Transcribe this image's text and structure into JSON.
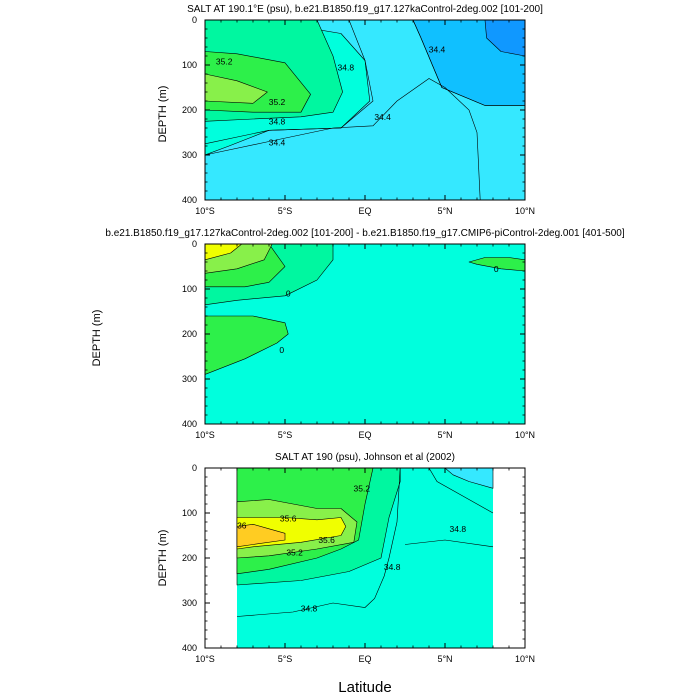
{
  "figure": {
    "xlabel": "Latitude"
  },
  "chart_data": [
    {
      "type": "contour",
      "id": "p1",
      "title": "SALT AT 190.1°E (psu), b.e21.B1850.f19_g17.127kaControl-2deg.002 [101-200]",
      "ylabel": "DEPTH (m)",
      "xlim": [
        -10,
        10
      ],
      "ylim": [
        400,
        0
      ],
      "x_ticks": [
        "10°S",
        "5°S",
        "EQ",
        "5°N",
        "10°N"
      ],
      "y_ticks": [
        "0",
        "100",
        "200",
        "300",
        "400"
      ],
      "background": "#35e8ff",
      "regions": [
        {
          "level": 34.6,
          "color": "#10c0ff",
          "x": [
            3,
            3.5,
            4.8,
            7.5,
            10,
            10
          ],
          "y": [
            0,
            40,
            150,
            190,
            190,
            0
          ]
        },
        {
          "level": 34.4,
          "color": "#1098ff",
          "x": [
            7.5,
            7.6,
            8.5,
            10,
            10
          ],
          "y": [
            0,
            40,
            70,
            80,
            0
          ]
        },
        {
          "level": 34.8,
          "color": "#00ffdd",
          "x": [
            -10,
            -10,
            -7,
            -4,
            -1.5,
            0,
            0.3,
            -1.5,
            -6,
            -8.5,
            -10
          ],
          "y": [
            0,
            20,
            35,
            15,
            30,
            90,
            180,
            240,
            245,
            280,
            300
          ]
        },
        {
          "level": 35.0,
          "color": "#00f7a0",
          "x": [
            -10,
            -6,
            -3,
            -2,
            -1.4,
            -2,
            -4,
            -7,
            -10
          ],
          "y": [
            0,
            0,
            0,
            80,
            160,
            205,
            215,
            220,
            225
          ]
        },
        {
          "level": 35.2,
          "color": "#2df04a",
          "x": [
            -10,
            -8,
            -5,
            -3.4,
            -4,
            -7,
            -10
          ],
          "y": [
            70,
            75,
            95,
            165,
            205,
            205,
            200
          ]
        },
        {
          "level": 35.4,
          "color": "#88f04a",
          "x": [
            -10,
            -8,
            -6.1,
            -7,
            -10
          ],
          "y": [
            120,
            135,
            160,
            185,
            180
          ]
        }
      ],
      "lines": [
        {
          "level": 34.4,
          "x": [
            -10,
            -6,
            -2,
            0.5,
            2,
            4,
            5,
            6.5,
            7,
            7.2
          ],
          "y": [
            300,
            270,
            240,
            235,
            180,
            130,
            150,
            200,
            250,
            400
          ]
        },
        {
          "level": 34.4,
          "x": [
            3,
            3.5,
            4.8,
            7.5,
            10
          ],
          "y": [
            0,
            40,
            150,
            190,
            190
          ]
        },
        {
          "level": 34.8,
          "x": [
            -1,
            0,
            0.5,
            -1.5,
            -6,
            -10
          ],
          "y": [
            0,
            90,
            180,
            240,
            245,
            275
          ]
        }
      ],
      "contour_labels": [
        {
          "text": "35.2",
          "x": -8.8,
          "y": 92
        },
        {
          "text": "35.2",
          "x": -5.5,
          "y": 182
        },
        {
          "text": "34.8",
          "x": -5.5,
          "y": 225
        },
        {
          "text": "34.4",
          "x": -5.5,
          "y": 272
        },
        {
          "text": "34.8",
          "x": -1.2,
          "y": 105
        },
        {
          "text": "34.4",
          "x": 1.1,
          "y": 215
        },
        {
          "text": "34.4",
          "x": 4.5,
          "y": 65
        }
      ]
    },
    {
      "type": "contour",
      "id": "p2",
      "title": "b.e21.B1850.f19_g17.127kaControl-2deg.002 [101-200] - b.e21.B1850.f19_g17.CMIP6-piControl-2deg.001 [401-500]",
      "ylabel": "DEPTH (m)",
      "xlim": [
        -10,
        10
      ],
      "ylim": [
        400,
        0
      ],
      "x_ticks": [
        "10°S",
        "5°S",
        "EQ",
        "5°N",
        "10°N"
      ],
      "y_ticks": [
        "0",
        "100",
        "200",
        "300",
        "400"
      ],
      "background": "#00ffdd",
      "regions": [
        {
          "level": 0.1,
          "color": "#00f7a0",
          "x": [
            -10,
            -5,
            -2,
            -2,
            -3,
            -5,
            -8,
            -10
          ],
          "y": [
            0,
            0,
            0,
            35,
            80,
            115,
            125,
            135
          ]
        },
        {
          "level": 0.2,
          "color": "#2df04a",
          "x": [
            -10,
            -6,
            -5,
            -6,
            -7.5,
            -10
          ],
          "y": [
            0,
            0,
            50,
            85,
            95,
            95
          ]
        },
        {
          "level": 0.3,
          "color": "#88f04a",
          "x": [
            -10,
            -5.8,
            -6.3,
            -8,
            -10
          ],
          "y": [
            0,
            0,
            35,
            55,
            65
          ]
        },
        {
          "level": 0.4,
          "color": "#f0ff00",
          "x": [
            -10,
            -7.7,
            -8.4,
            -10
          ],
          "y": [
            0,
            0,
            20,
            35
          ]
        },
        {
          "level": 0.5,
          "color": "#ffcc22",
          "x": [
            -10,
            -10
          ],
          "y": [
            0,
            10
          ]
        },
        {
          "level": 0.1,
          "color": "#2df04a",
          "x": [
            -10,
            -7,
            -5,
            -4.8,
            -5.5,
            -7.5,
            -10
          ],
          "y": [
            160,
            160,
            175,
            200,
            220,
            255,
            290
          ]
        },
        {
          "level": 0.1,
          "color": "#2df04a",
          "x": [
            6.5,
            7.5,
            9,
            10,
            10,
            8.5,
            7
          ],
          "y": [
            40,
            30,
            30,
            35,
            60,
            55,
            45
          ]
        }
      ],
      "lines": [],
      "contour_labels": [
        {
          "text": "0",
          "x": -4.8,
          "y": 110
        },
        {
          "text": "0",
          "x": -5.2,
          "y": 235
        },
        {
          "text": "0",
          "x": 8.2,
          "y": 55
        }
      ]
    },
    {
      "type": "contour",
      "id": "p3",
      "title": "SALT AT 190 (psu), Johnson et al (2002)",
      "ylabel": "DEPTH (m)",
      "xlim": [
        -10,
        10
      ],
      "ylim": [
        400,
        0
      ],
      "x_ticks": [
        "10°S",
        "5°S",
        "EQ",
        "5°N",
        "10°N"
      ],
      "y_ticks": [
        "0",
        "100",
        "200",
        "300",
        "400"
      ],
      "data_xlim": [
        -8,
        8
      ],
      "background": "#00ffdd",
      "regions": [
        {
          "level": 35.0,
          "color": "#00f7a0",
          "x": [
            -8,
            2.2,
            2.2,
            1.5,
            1,
            -1,
            -4,
            -8
          ],
          "y": [
            0,
            0,
            30,
            110,
            200,
            230,
            250,
            260
          ]
        },
        {
          "level": 35.2,
          "color": "#2df04a",
          "x": [
            -8,
            0.5,
            0,
            -0.4,
            -1.5,
            -3,
            -6,
            -8
          ],
          "y": [
            0,
            0,
            80,
            160,
            180,
            200,
            225,
            235
          ]
        },
        {
          "level": 35.4,
          "color": "#88f04a",
          "x": [
            -8,
            -6,
            -3,
            -1.5,
            -0.5,
            -0.7,
            -3,
            -6,
            -8
          ],
          "y": [
            75,
            70,
            90,
            90,
            120,
            165,
            180,
            195,
            200
          ]
        },
        {
          "level": 35.6,
          "color": "#f0ff00",
          "x": [
            -8,
            -5,
            -3,
            -1.5,
            -1.2,
            -1.5,
            -4,
            -7,
            -8
          ],
          "y": [
            110,
            110,
            115,
            110,
            130,
            150,
            165,
            175,
            180
          ]
        },
        {
          "level": 35.8,
          "color": "#ffcc22",
          "x": [
            -8,
            -7,
            -6,
            -5,
            -5,
            -7,
            -8
          ],
          "y": [
            130,
            125,
            135,
            145,
            160,
            170,
            175
          ]
        },
        {
          "level": 34.6,
          "color": "#35e8ff",
          "x": [
            5,
            5.5,
            6.5,
            8,
            8
          ],
          "y": [
            0,
            15,
            30,
            45,
            0
          ]
        }
      ],
      "lines": [
        {
          "level": 34.8,
          "x": [
            -8,
            -4.5,
            -2,
            0,
            0.6,
            1.2,
            1.5,
            2,
            2.2
          ],
          "y": [
            330,
            320,
            300,
            310,
            290,
            240,
            200,
            120,
            0
          ]
        },
        {
          "level": 34.8,
          "x": [
            4,
            4.5,
            6,
            8
          ],
          "y": [
            0,
            30,
            60,
            100
          ]
        },
        {
          "level": 34.8,
          "x": [
            2.5,
            5,
            8
          ],
          "y": [
            170,
            160,
            175
          ]
        }
      ],
      "contour_labels": [
        {
          "text": "35.2",
          "x": -0.2,
          "y": 45
        },
        {
          "text": "35.6",
          "x": -4.8,
          "y": 112
        },
        {
          "text": "36",
          "x": -7.7,
          "y": 128
        },
        {
          "text": "35.6",
          "x": -2.4,
          "y": 160
        },
        {
          "text": "35.2",
          "x": -4.4,
          "y": 188
        },
        {
          "text": "34.8",
          "x": 1.7,
          "y": 220
        },
        {
          "text": "34.8",
          "x": -3.5,
          "y": 312
        },
        {
          "text": "34.8",
          "x": 5.8,
          "y": 135
        }
      ]
    }
  ]
}
